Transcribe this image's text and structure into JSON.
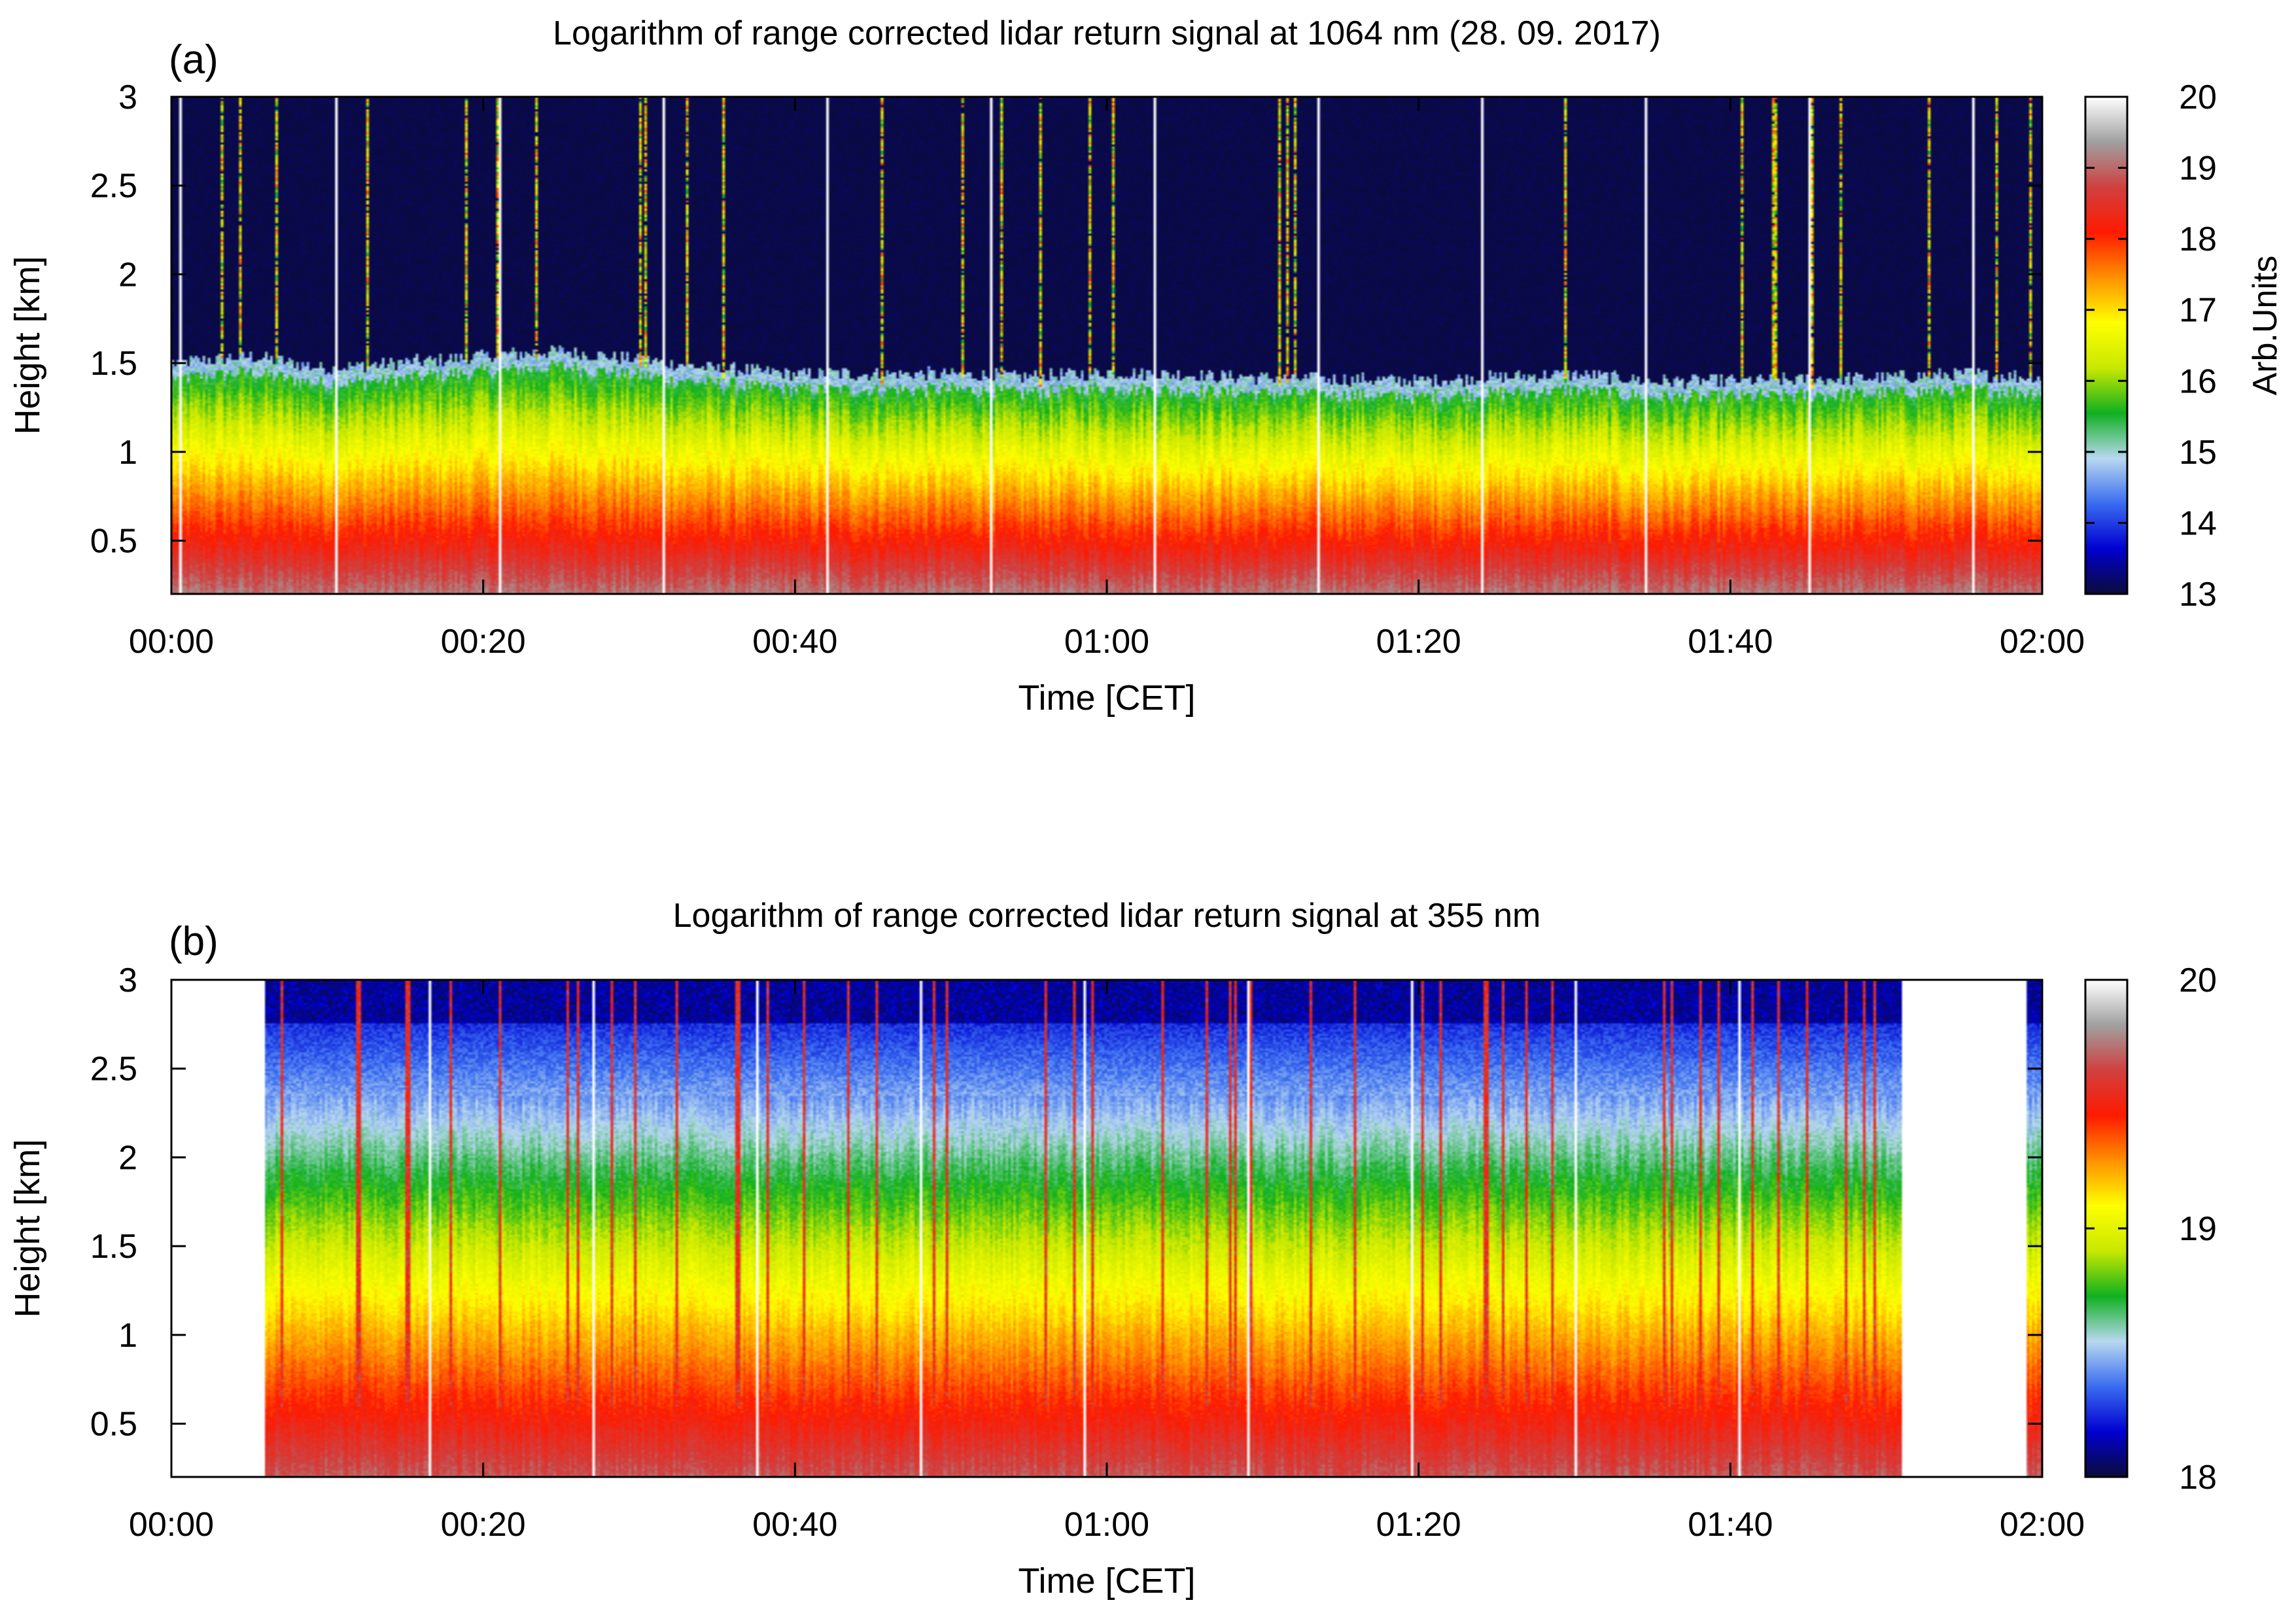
{
  "chart_data": [
    {
      "type": "heatmap",
      "panel_label": "(a)",
      "title": "Logarithm of range corrected lidar return signal at 1064 nm (28. 09. 2017)",
      "xlabel": "Time [CET]",
      "ylabel": "Height [km]",
      "x_tick_labels": [
        "00:00",
        "00:20",
        "00:40",
        "01:00",
        "01:20",
        "01:40",
        "02:00"
      ],
      "x_range_minutes": [
        0,
        120
      ],
      "x_tick_minutes": [
        0,
        20,
        40,
        60,
        80,
        100,
        120
      ],
      "y_tick_labels": [
        "0.5",
        "1",
        "1.5",
        "2",
        "2.5",
        "3"
      ],
      "y_tick_values": [
        0.5,
        1,
        1.5,
        2,
        2.5,
        3
      ],
      "ylim": [
        0.2,
        3
      ],
      "colorbar": {
        "label": "Arb.Units",
        "tick_labels": [
          "13",
          "14",
          "15",
          "16",
          "17",
          "18",
          "19",
          "20"
        ],
        "tick_values": [
          13,
          14,
          15,
          16,
          17,
          18,
          19,
          20
        ],
        "range": [
          13,
          20
        ],
        "colors": [
          "#0b0b3a",
          "#0000d0",
          "#3a6cf0",
          "#b8d8f0",
          "#10b020",
          "#c8e800",
          "#ffff00",
          "#ff9000",
          "#ff1a00",
          "#d04040",
          "#a0a0a0",
          "#ffffff"
        ]
      },
      "data_start_minute": 0,
      "data_end_minute": 120,
      "profile_gap_minutes": [
        0.5,
        10.5,
        21,
        31.5,
        42,
        52.5,
        63,
        73.5,
        84,
        94.5,
        105,
        115.5
      ],
      "aerosol_layer_top_km": {
        "minutes": [
          0,
          5,
          10,
          20,
          25,
          30,
          35,
          40,
          50,
          55,
          60,
          70,
          80,
          90,
          95,
          100,
          110,
          115,
          120
        ],
        "values": [
          1.48,
          1.52,
          1.45,
          1.52,
          1.55,
          1.5,
          1.45,
          1.42,
          1.42,
          1.4,
          1.43,
          1.4,
          1.38,
          1.42,
          1.38,
          1.38,
          1.4,
          1.42,
          1.4
        ]
      }
    },
    {
      "type": "heatmap",
      "panel_label": "(b)",
      "title": "Logarithm of range corrected lidar return signal at 355 nm",
      "xlabel": "Time [CET]",
      "ylabel": "Height [km]",
      "x_tick_labels": [
        "00:00",
        "00:20",
        "00:40",
        "01:00",
        "01:20",
        "01:40",
        "02:00"
      ],
      "x_range_minutes": [
        0,
        120
      ],
      "x_tick_minutes": [
        0,
        20,
        40,
        60,
        80,
        100,
        120
      ],
      "y_tick_labels": [
        "0.5",
        "1",
        "1.5",
        "2",
        "2.5",
        "3"
      ],
      "y_tick_values": [
        0.5,
        1,
        1.5,
        2,
        2.5,
        3
      ],
      "ylim": [
        0.2,
        3
      ],
      "colorbar": {
        "label": "",
        "tick_labels": [
          "18",
          "19",
          "20"
        ],
        "tick_values": [
          18,
          19,
          20
        ],
        "range": [
          18,
          20
        ],
        "colors": [
          "#0b0b3a",
          "#0000d0",
          "#3a6cf0",
          "#b8d8f0",
          "#10b020",
          "#c8e800",
          "#ffff00",
          "#ff9000",
          "#ff1a00",
          "#d04040",
          "#a0a0a0",
          "#ffffff"
        ]
      },
      "data_start_minute": 6,
      "data_end_minute": 111,
      "extra_data_window_minutes": [
        119,
        120
      ],
      "profile_gap_minutes": [
        16.5,
        27,
        37.5,
        48,
        58.5,
        69,
        79.5,
        90,
        100.5
      ]
    }
  ]
}
